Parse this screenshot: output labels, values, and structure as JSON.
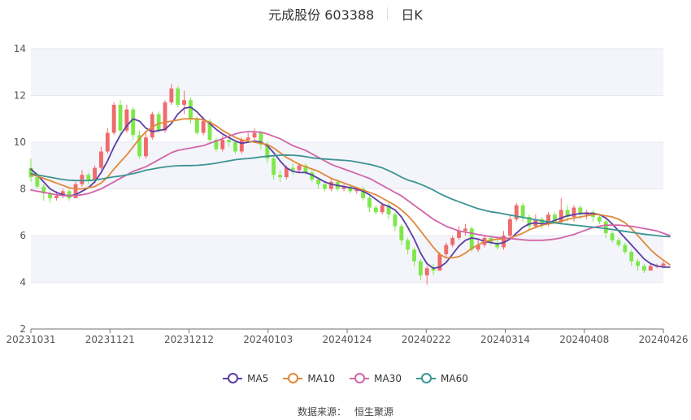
{
  "header": {
    "title": "元成股份 603388",
    "period": "日K"
  },
  "source": {
    "label": "数据来源：",
    "value": "恒生聚源"
  },
  "chart_data": {
    "type": "candlestick",
    "ylim": [
      2,
      14
    ],
    "yticks": [
      2,
      4,
      6,
      8,
      10,
      12,
      14
    ],
    "xticks": [
      "20231031",
      "20231121",
      "20231212",
      "20240103",
      "20240124",
      "20240222",
      "20240314",
      "20240408",
      "20240426"
    ],
    "colors": {
      "up": "#ef6b6b",
      "down": "#7ee84a",
      "grid_band": "#f4f5fb"
    },
    "candles": [
      [
        8.9,
        8.5,
        9.3,
        8.3
      ],
      [
        8.5,
        8.1,
        8.7,
        8.0
      ],
      [
        8.1,
        7.8,
        8.2,
        7.5
      ],
      [
        7.8,
        7.6,
        7.9,
        7.4
      ],
      [
        7.6,
        7.7,
        7.9,
        7.5
      ],
      [
        7.7,
        7.9,
        8.0,
        7.6
      ],
      [
        7.9,
        7.6,
        8.0,
        7.5
      ],
      [
        7.6,
        8.2,
        8.3,
        7.6
      ],
      [
        8.2,
        8.6,
        8.8,
        8.1
      ],
      [
        8.6,
        8.4,
        8.7,
        8.2
      ],
      [
        8.4,
        8.9,
        9.0,
        8.3
      ],
      [
        8.9,
        9.6,
        9.8,
        8.8
      ],
      [
        9.6,
        10.4,
        10.6,
        9.5
      ],
      [
        10.4,
        11.6,
        11.7,
        10.3
      ],
      [
        11.6,
        10.5,
        11.8,
        10.3
      ],
      [
        10.5,
        11.4,
        11.6,
        10.4
      ],
      [
        11.4,
        10.3,
        11.5,
        10.1
      ],
      [
        10.3,
        9.4,
        10.5,
        9.3
      ],
      [
        9.4,
        10.2,
        10.4,
        9.3
      ],
      [
        10.2,
        11.2,
        11.3,
        10.1
      ],
      [
        11.2,
        10.5,
        11.3,
        10.4
      ],
      [
        10.5,
        11.7,
        11.8,
        10.4
      ],
      [
        11.7,
        12.3,
        12.5,
        11.6
      ],
      [
        12.3,
        11.6,
        12.4,
        11.5
      ],
      [
        11.6,
        11.8,
        12.2,
        11.2
      ],
      [
        11.8,
        11.0,
        11.9,
        10.8
      ],
      [
        11.0,
        10.4,
        11.1,
        10.3
      ],
      [
        10.4,
        10.9,
        11.1,
        10.3
      ],
      [
        10.9,
        10.1,
        11.0,
        10.0
      ],
      [
        10.1,
        9.7,
        10.2,
        9.6
      ],
      [
        9.7,
        10.1,
        10.3,
        9.6
      ],
      [
        10.1,
        10.0,
        10.3,
        9.8
      ],
      [
        10.0,
        9.6,
        10.1,
        9.5
      ],
      [
        9.6,
        10.1,
        10.2,
        9.5
      ],
      [
        10.1,
        10.2,
        10.4,
        10.0
      ],
      [
        10.2,
        10.4,
        10.6,
        10.1
      ],
      [
        10.4,
        9.9,
        10.5,
        9.7
      ],
      [
        9.9,
        9.3,
        10.0,
        9.1
      ],
      [
        9.3,
        8.6,
        9.4,
        8.4
      ],
      [
        8.6,
        8.5,
        8.8,
        8.3
      ],
      [
        8.5,
        8.9,
        9.0,
        8.4
      ],
      [
        8.9,
        8.8,
        9.1,
        8.6
      ],
      [
        8.8,
        9.0,
        9.1,
        8.7
      ],
      [
        9.0,
        8.7,
        9.1,
        8.6
      ],
      [
        8.7,
        8.4,
        8.8,
        8.3
      ],
      [
        8.4,
        8.2,
        8.5,
        8.0
      ],
      [
        8.2,
        8.0,
        8.3,
        7.9
      ],
      [
        8.0,
        8.3,
        8.4,
        7.9
      ],
      [
        8.3,
        8.0,
        8.4,
        7.9
      ],
      [
        8.0,
        8.1,
        8.2,
        7.9
      ],
      [
        8.1,
        7.9,
        8.2,
        7.8
      ],
      [
        7.9,
        8.0,
        8.1,
        7.8
      ],
      [
        8.0,
        7.6,
        8.1,
        7.5
      ],
      [
        7.6,
        7.2,
        7.7,
        7.0
      ],
      [
        7.2,
        7.0,
        7.3,
        6.9
      ],
      [
        7.0,
        7.3,
        7.4,
        6.9
      ],
      [
        7.3,
        6.9,
        7.4,
        6.7
      ],
      [
        6.9,
        6.4,
        7.0,
        6.2
      ],
      [
        6.4,
        5.8,
        6.5,
        5.6
      ],
      [
        5.8,
        5.4,
        5.9,
        5.2
      ],
      [
        5.4,
        4.9,
        5.5,
        4.7
      ],
      [
        4.9,
        4.3,
        5.0,
        4.1
      ],
      [
        4.3,
        4.6,
        4.7,
        3.9
      ],
      [
        4.6,
        4.5,
        4.8,
        4.3
      ],
      [
        4.5,
        5.2,
        5.3,
        4.5
      ],
      [
        5.2,
        5.6,
        5.7,
        5.1
      ],
      [
        5.6,
        5.9,
        6.0,
        5.5
      ],
      [
        5.9,
        6.2,
        6.4,
        5.8
      ],
      [
        6.2,
        6.3,
        6.5,
        6.0
      ],
      [
        6.3,
        5.4,
        6.4,
        5.3
      ],
      [
        5.4,
        5.6,
        5.8,
        5.3
      ],
      [
        5.6,
        5.9,
        6.0,
        5.5
      ],
      [
        5.9,
        5.7,
        6.0,
        5.6
      ],
      [
        5.7,
        5.5,
        5.8,
        5.4
      ],
      [
        5.5,
        6.0,
        6.2,
        5.4
      ],
      [
        6.0,
        6.7,
        6.9,
        5.9
      ],
      [
        6.7,
        7.3,
        7.4,
        6.6
      ],
      [
        7.3,
        6.8,
        7.4,
        6.6
      ],
      [
        6.8,
        6.4,
        6.9,
        6.2
      ],
      [
        6.4,
        6.7,
        6.9,
        6.3
      ],
      [
        6.7,
        6.5,
        6.8,
        6.3
      ],
      [
        6.5,
        6.9,
        7.0,
        6.4
      ],
      [
        6.9,
        6.6,
        7.0,
        6.5
      ],
      [
        6.6,
        7.1,
        7.6,
        6.5
      ],
      [
        7.1,
        6.8,
        7.3,
        6.6
      ],
      [
        6.8,
        7.2,
        7.3,
        6.6
      ],
      [
        7.2,
        6.9,
        7.3,
        6.7
      ],
      [
        6.9,
        7.0,
        7.1,
        6.7
      ],
      [
        7.0,
        6.8,
        7.1,
        6.6
      ],
      [
        6.8,
        6.6,
        6.9,
        6.5
      ],
      [
        6.6,
        6.1,
        6.7,
        5.9
      ],
      [
        6.1,
        5.8,
        6.2,
        5.7
      ],
      [
        5.8,
        5.6,
        5.9,
        5.5
      ],
      [
        5.6,
        5.3,
        5.7,
        5.2
      ],
      [
        5.3,
        4.9,
        5.4,
        4.7
      ],
      [
        4.9,
        4.7,
        5.0,
        4.5
      ],
      [
        4.7,
        4.5,
        4.8,
        4.4
      ],
      [
        4.5,
        4.7,
        4.8,
        4.5
      ],
      [
        4.7,
        4.7,
        4.8,
        4.6
      ],
      [
        4.7,
        4.8,
        4.9,
        4.6
      ]
    ],
    "series": [
      {
        "name": "MA5",
        "color": "#5b3ea6",
        "values": [
          8.85,
          8.6,
          8.3,
          8.0,
          7.85,
          7.75,
          7.7,
          7.75,
          7.9,
          8.05,
          8.3,
          8.7,
          9.2,
          9.8,
          10.3,
          10.7,
          11.0,
          10.9,
          10.6,
          10.45,
          10.5,
          10.55,
          10.8,
          11.2,
          11.45,
          11.5,
          11.3,
          11.0,
          10.8,
          10.55,
          10.35,
          10.2,
          10.05,
          9.95,
          10.0,
          10.05,
          10.0,
          9.85,
          9.55,
          9.2,
          8.9,
          8.75,
          8.7,
          8.7,
          8.6,
          8.45,
          8.3,
          8.2,
          8.15,
          8.1,
          8.05,
          8.0,
          7.9,
          7.75,
          7.55,
          7.35,
          7.25,
          7.1,
          6.8,
          6.35,
          5.85,
          5.25,
          4.8,
          4.6,
          4.65,
          4.85,
          5.2,
          5.55,
          5.8,
          5.9,
          5.85,
          5.75,
          5.7,
          5.65,
          5.7,
          5.85,
          6.1,
          6.35,
          6.5,
          6.55,
          6.5,
          6.55,
          6.65,
          6.75,
          6.85,
          6.9,
          6.95,
          6.95,
          6.95,
          6.9,
          6.75,
          6.5,
          6.2,
          5.9,
          5.6,
          5.3,
          5.0,
          4.8,
          4.7,
          4.65,
          4.65
        ]
      },
      {
        "name": "MA10",
        "color": "#e0893a",
        "values": [
          8.6,
          8.55,
          8.45,
          8.35,
          8.25,
          8.15,
          8.05,
          8.0,
          8.0,
          8.05,
          8.1,
          8.25,
          8.5,
          8.85,
          9.15,
          9.45,
          9.8,
          10.15,
          10.45,
          10.65,
          10.8,
          10.85,
          10.9,
          10.95,
          11.0,
          11.0,
          11.0,
          10.95,
          10.85,
          10.7,
          10.5,
          10.35,
          10.2,
          10.1,
          10.05,
          10.0,
          9.95,
          9.9,
          9.75,
          9.55,
          9.35,
          9.2,
          9.05,
          8.95,
          8.85,
          8.75,
          8.6,
          8.45,
          8.35,
          8.25,
          8.15,
          8.05,
          7.95,
          7.85,
          7.75,
          7.6,
          7.45,
          7.3,
          7.1,
          6.85,
          6.55,
          6.2,
          5.85,
          5.5,
          5.2,
          5.05,
          5.05,
          5.1,
          5.25,
          5.45,
          5.6,
          5.75,
          5.8,
          5.85,
          5.85,
          5.9,
          6.0,
          6.1,
          6.25,
          6.35,
          6.45,
          6.5,
          6.55,
          6.6,
          6.7,
          6.75,
          6.8,
          6.85,
          6.9,
          6.9,
          6.85,
          6.8,
          6.7,
          6.55,
          6.3,
          6.0,
          5.7,
          5.4,
          5.15,
          4.95,
          4.75
        ]
      },
      {
        "name": "MA30",
        "color": "#d166a8",
        "values": [
          7.95,
          7.9,
          7.85,
          7.8,
          7.75,
          7.72,
          7.7,
          7.72,
          7.75,
          7.8,
          7.9,
          8.0,
          8.15,
          8.3,
          8.45,
          8.6,
          8.75,
          8.85,
          8.95,
          9.1,
          9.25,
          9.4,
          9.55,
          9.65,
          9.7,
          9.75,
          9.8,
          9.85,
          9.95,
          10.05,
          10.15,
          10.25,
          10.35,
          10.42,
          10.45,
          10.45,
          10.42,
          10.35,
          10.25,
          10.15,
          10.0,
          9.85,
          9.75,
          9.65,
          9.5,
          9.35,
          9.2,
          9.05,
          8.95,
          8.85,
          8.75,
          8.65,
          8.55,
          8.45,
          8.3,
          8.15,
          8.0,
          7.85,
          7.7,
          7.5,
          7.3,
          7.1,
          6.9,
          6.7,
          6.55,
          6.4,
          6.3,
          6.2,
          6.15,
          6.1,
          6.05,
          6.0,
          5.95,
          5.92,
          5.9,
          5.87,
          5.85,
          5.82,
          5.8,
          5.8,
          5.8,
          5.82,
          5.85,
          5.9,
          5.98,
          6.05,
          6.15,
          6.25,
          6.35,
          6.4,
          6.45,
          6.45,
          6.45,
          6.42,
          6.4,
          6.35,
          6.3,
          6.25,
          6.2,
          6.1,
          6.0
        ]
      },
      {
        "name": "MA60",
        "color": "#3d9494",
        "values": [
          8.65,
          8.6,
          8.55,
          8.5,
          8.45,
          8.4,
          8.37,
          8.36,
          8.35,
          8.36,
          8.38,
          8.42,
          8.47,
          8.52,
          8.55,
          8.6,
          8.65,
          8.72,
          8.8,
          8.85,
          8.9,
          8.94,
          8.97,
          8.99,
          9.0,
          9.0,
          9.01,
          9.03,
          9.06,
          9.1,
          9.15,
          9.2,
          9.25,
          9.28,
          9.3,
          9.33,
          9.37,
          9.4,
          9.42,
          9.44,
          9.45,
          9.44,
          9.42,
          9.38,
          9.33,
          9.3,
          9.28,
          9.26,
          9.24,
          9.22,
          9.2,
          9.15,
          9.1,
          9.05,
          8.98,
          8.9,
          8.78,
          8.65,
          8.5,
          8.38,
          8.3,
          8.2,
          8.08,
          7.95,
          7.8,
          7.67,
          7.55,
          7.45,
          7.35,
          7.25,
          7.15,
          7.08,
          7.02,
          6.98,
          6.93,
          6.88,
          6.83,
          6.78,
          6.73,
          6.68,
          6.63,
          6.59,
          6.55,
          6.51,
          6.48,
          6.45,
          6.42,
          6.39,
          6.36,
          6.33,
          6.3,
          6.26,
          6.22,
          6.18,
          6.14,
          6.1,
          6.06,
          6.03,
          6.0,
          5.97,
          5.95
        ]
      }
    ]
  }
}
